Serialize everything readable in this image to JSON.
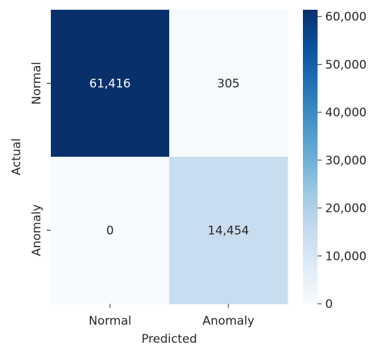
{
  "chart_data": {
    "type": "heatmap",
    "title": "",
    "xlabel": "Predicted",
    "ylabel": "Actual",
    "x_categories": [
      "Normal",
      "Anomaly"
    ],
    "y_categories": [
      "Normal",
      "Anomaly"
    ],
    "matrix": [
      [
        61416,
        305
      ],
      [
        0,
        14454
      ]
    ],
    "cell_labels": [
      [
        "61,416",
        "305"
      ],
      [
        "0",
        "14,454"
      ]
    ],
    "colormap": "Blues",
    "color_low": "#f7fbff",
    "color_high": "#08306b",
    "vmin": 0,
    "vmax": 61416,
    "colorbar": {
      "ticks": [
        0,
        10000,
        20000,
        30000,
        40000,
        50000,
        60000
      ],
      "tick_labels": [
        "0",
        "10,000",
        "20,000",
        "30,000",
        "40,000",
        "50,000",
        "60,000"
      ]
    }
  }
}
